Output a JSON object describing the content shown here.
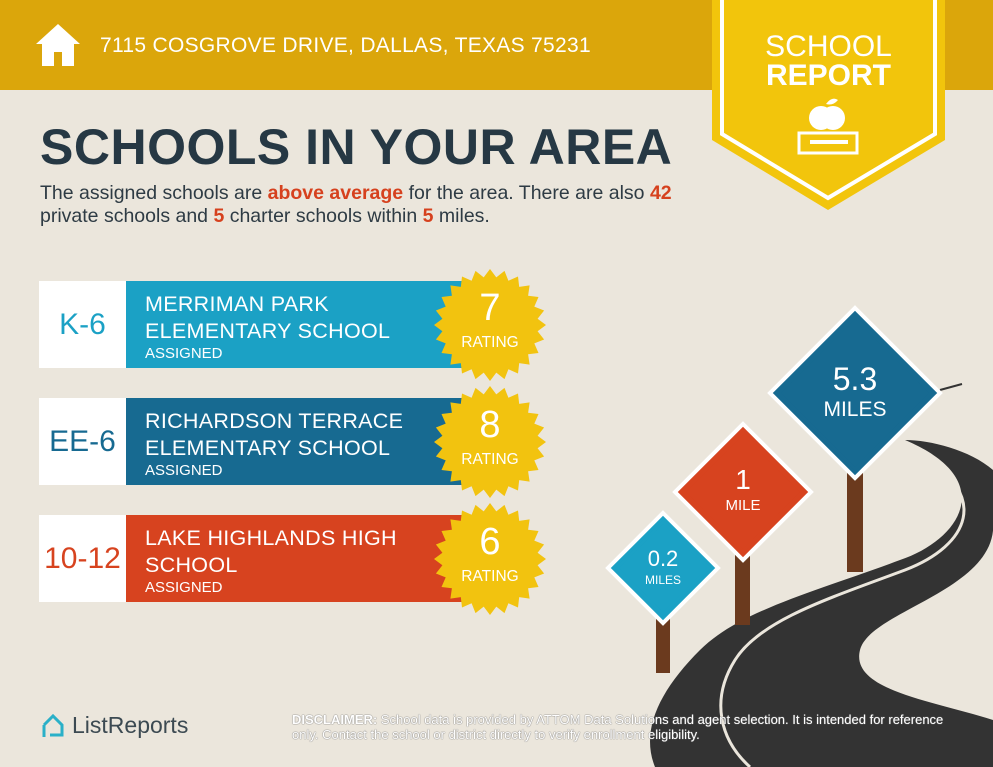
{
  "header": {
    "address": "7115 COSGROVE DRIVE, DALLAS, TEXAS 75231",
    "icon": "house-icon"
  },
  "badge": {
    "line1": "SCHOOL",
    "line2": "REPORT",
    "icon": "apple-on-book-icon"
  },
  "title": "SCHOOLS IN YOUR AREA",
  "subtitle": {
    "p1": "The assigned schools are ",
    "h1": "above average",
    "p2": " for the area. There are also ",
    "h2": "42",
    "p3": " private schools and ",
    "h3": "5",
    "p4": " charter schools within ",
    "h4": "5",
    "p5": " miles."
  },
  "schools": [
    {
      "grade": "K-6",
      "name1": "MERRIMAN PARK",
      "name2": "ELEMENTARY SCHOOL",
      "status": "ASSIGNED",
      "rating": "7",
      "rating_label": "RATING",
      "color": "#1ba1c5"
    },
    {
      "grade": "EE-6",
      "name1": "RICHARDSON TERRACE",
      "name2": "ELEMENTARY SCHOOL",
      "status": "ASSIGNED",
      "rating": "8",
      "rating_label": "RATING",
      "color": "#176a91"
    },
    {
      "grade": "10-12",
      "name1": "LAKE HIGHLANDS HIGH",
      "name2": "SCHOOL",
      "status": "ASSIGNED",
      "rating": "6",
      "rating_label": "RATING",
      "color": "#d7431f"
    }
  ],
  "signs": [
    {
      "value": "0.2",
      "unit": "MILES",
      "color": "#1ba1c5"
    },
    {
      "value": "1",
      "unit": "MILE",
      "color": "#d7431f"
    },
    {
      "value": "5.3",
      "unit": "MILES",
      "color": "#176a91"
    }
  ],
  "footer": {
    "logo": "ListReports",
    "disclaimer_label": "DISCLAIMER:",
    "disclaimer": " School data is provided by ATTOM Data Solutions and agent selection. It is intended for reference only. Contact the school or district directly to verify enrollment eligibility."
  },
  "colors": {
    "gold": "#dba60b",
    "yellow": "#f2c50c",
    "background": "#ebe6dc"
  }
}
